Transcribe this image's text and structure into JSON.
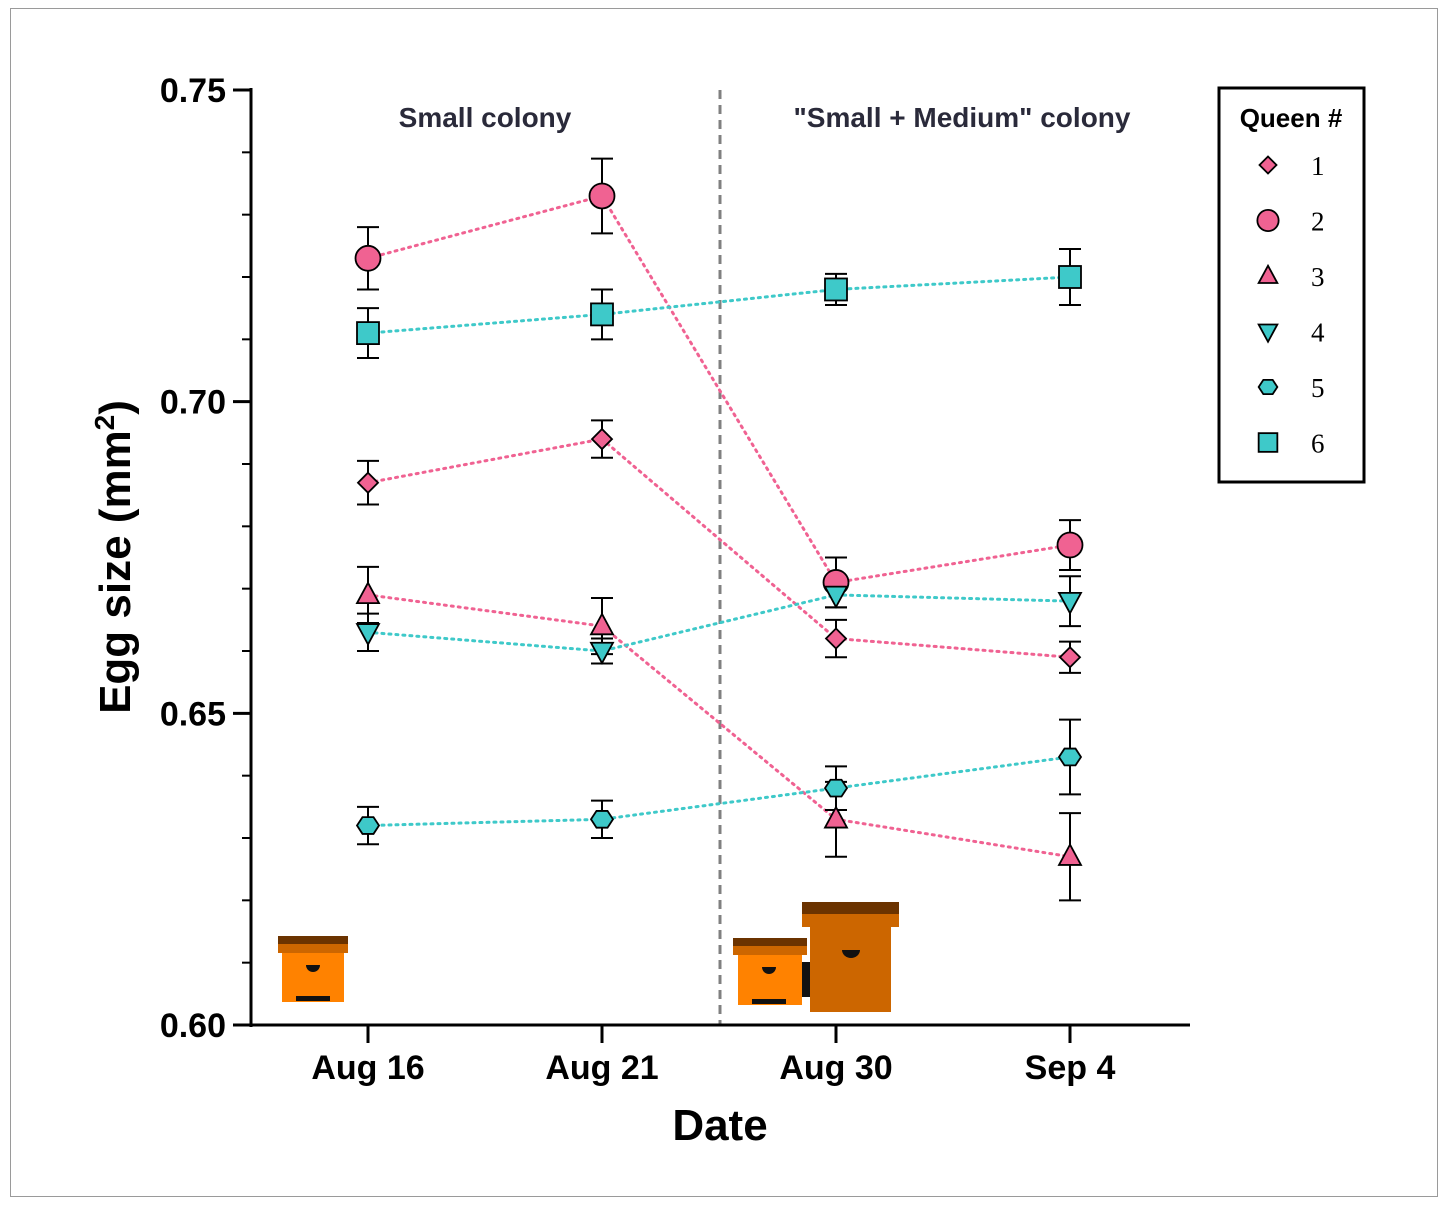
{
  "chart_data": {
    "type": "line",
    "xlabel": "Date",
    "ylabel": "Egg size (mm²)",
    "ylabel_base": "Egg size (mm",
    "ylabel_sup": "2",
    "ylabel_end": ")",
    "categories": [
      "Aug 16",
      "Aug 21",
      "Aug 30",
      "Sep 4"
    ],
    "ylim": [
      0.6,
      0.75
    ],
    "yticks": [
      "0.60",
      "0.65",
      "0.70",
      "0.75"
    ],
    "regions": [
      "Small colony",
      "\"Small + Medium\" colony"
    ],
    "legend_title": "Queen #",
    "legend_position": "top-right",
    "grid": false,
    "series": [
      {
        "name": "1",
        "marker": "diamond",
        "color": "#f06292",
        "values": [
          0.687,
          0.694,
          0.662,
          0.659
        ],
        "errors": [
          0.0035,
          0.003,
          0.003,
          0.0025
        ]
      },
      {
        "name": "2",
        "marker": "circle",
        "color": "#f06292",
        "values": [
          0.723,
          0.733,
          0.671,
          0.677
        ],
        "errors": [
          0.005,
          0.006,
          0.004,
          0.004
        ]
      },
      {
        "name": "3",
        "marker": "triangle-up",
        "color": "#f06292",
        "values": [
          0.669,
          0.664,
          0.633,
          0.627
        ],
        "errors": [
          0.0045,
          0.0045,
          0.006,
          0.007
        ]
      },
      {
        "name": "4",
        "marker": "triangle-down",
        "color": "#3ec9c9",
        "values": [
          0.663,
          0.66,
          0.669,
          0.668
        ],
        "errors": [
          0.003,
          0.002,
          0.002,
          0.004
        ]
      },
      {
        "name": "5",
        "marker": "hexagon",
        "color": "#3ec9c9",
        "values": [
          0.632,
          0.633,
          0.638,
          0.643
        ],
        "errors": [
          0.003,
          0.003,
          0.0035,
          0.006
        ]
      },
      {
        "name": "6",
        "marker": "square",
        "color": "#3ec9c9",
        "values": [
          0.711,
          0.714,
          0.718,
          0.72
        ],
        "errors": [
          0.004,
          0.004,
          0.0025,
          0.0045
        ]
      }
    ]
  },
  "colors": {
    "pink_fill": "#f06292",
    "cyan_fill": "#3ec9c9",
    "hive_orange": "#ff8200",
    "hive_dark_orange": "#cc6600",
    "hive_roof": "#6b3300",
    "divider": "#808080"
  },
  "icons": [
    "small-hive-icon",
    "medium-hive-icon"
  ]
}
